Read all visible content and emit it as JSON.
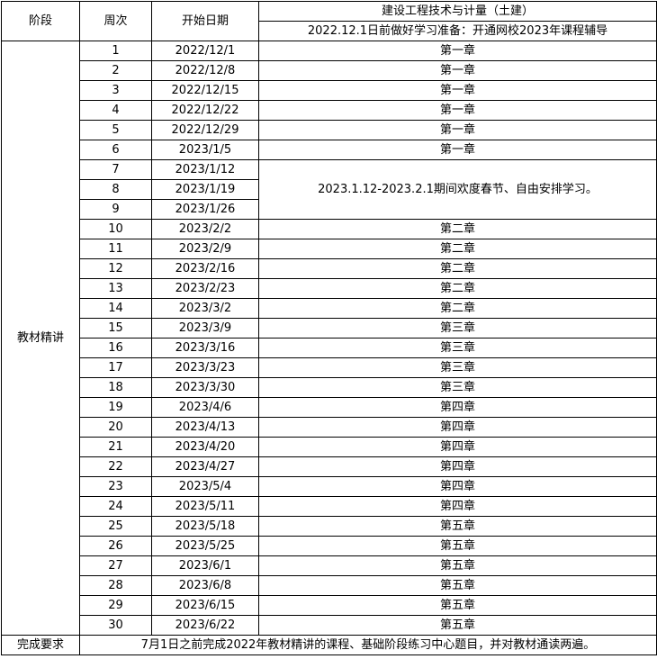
{
  "header": {
    "stage": "阶段",
    "week": "周次",
    "start_date": "开始日期",
    "course_title": "建设工程技术与计量（土建）",
    "course_note": "2022.12.1日前做好学习准备：开通网校2023年课程辅导"
  },
  "stage_label": "教材精讲",
  "rows": [
    [
      1,
      "2022/12/1",
      "第一章"
    ],
    [
      2,
      "2022/12/8",
      "第一章"
    ],
    [
      3,
      "2022/12/15",
      "第一章"
    ],
    [
      4,
      "2022/12/22",
      "第一章"
    ],
    [
      5,
      "2022/12/29",
      "第一章"
    ],
    [
      6,
      "2023/1/5",
      "第一章"
    ],
    [
      7,
      "2023/1/12",
      "2023.1.12-2023.2.1期间欢度春节、自由安排学习。"
    ],
    [
      8,
      "2023/1/19"
    ],
    [
      9,
      "2023/1/26"
    ],
    [
      10,
      "2023/2/2",
      "第二章"
    ],
    [
      11,
      "2023/2/9",
      "第二章"
    ],
    [
      12,
      "2023/2/16",
      "第二章"
    ],
    [
      13,
      "2023/2/23",
      "第二章"
    ],
    [
      14,
      "2023/3/2",
      "第二章"
    ],
    [
      15,
      "2023/3/9",
      "第三章"
    ],
    [
      16,
      "2023/3/16",
      "第三章"
    ],
    [
      17,
      "2023/3/23",
      "第三章"
    ],
    [
      18,
      "2023/3/30",
      "第三章"
    ],
    [
      19,
      "2023/4/6",
      "第四章"
    ],
    [
      20,
      "2023/4/13",
      "第四章"
    ],
    [
      21,
      "2023/4/20",
      "第四章"
    ],
    [
      22,
      "2023/4/27",
      "第四章"
    ],
    [
      23,
      "2023/5/4",
      "第四章"
    ],
    [
      24,
      "2023/5/11",
      "第四章"
    ],
    [
      25,
      "2023/5/18",
      "第五章"
    ],
    [
      26,
      "2023/5/25",
      "第五章"
    ],
    [
      27,
      "2023/6/1",
      "第五章"
    ],
    [
      28,
      "2023/6/8",
      "第五章"
    ],
    [
      29,
      "2023/6/15",
      "第五章"
    ],
    [
      30,
      "2023/6/22",
      "第五章"
    ]
  ],
  "footer": {
    "label": "完成要求",
    "text": "7月1日之前完成2022年教材精讲的课程、基础阶段练习中心题目，并对教材通读两遍。"
  }
}
